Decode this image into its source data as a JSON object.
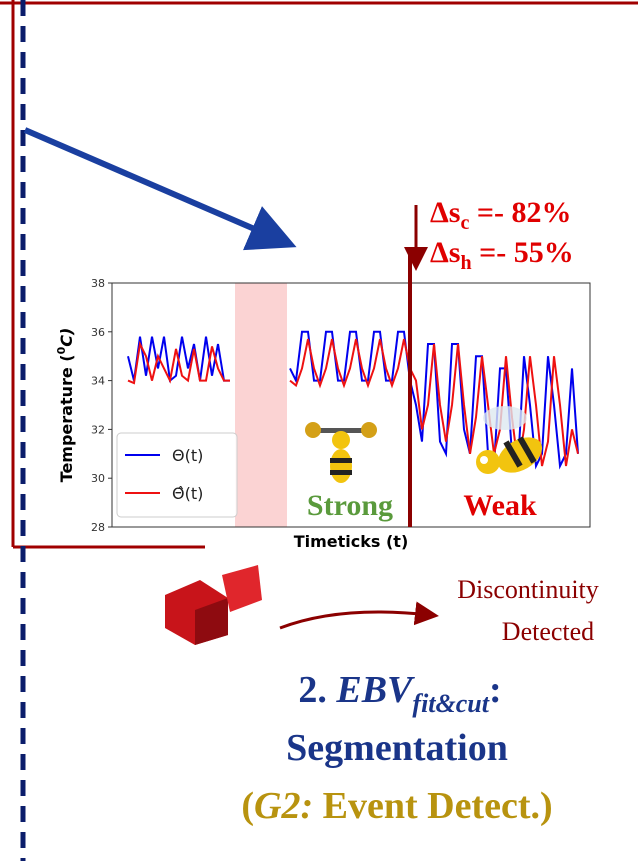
{
  "chart_data": {
    "type": "line",
    "ylabel": [
      "Temperature (",
      "0",
      "C)"
    ],
    "xlabel": "Timeticks (t)",
    "ylim": [
      28,
      38
    ],
    "yticks": [
      28,
      30,
      32,
      34,
      36,
      38
    ],
    "legend": "lower left",
    "series": [
      {
        "name": "Θ(t)",
        "color": "#0000ee",
        "values": [
          35,
          34,
          35.8,
          34.2,
          35.8,
          34.5,
          35.8,
          34,
          34.2,
          35.8,
          34.5,
          35.5,
          34,
          35.8,
          34.2,
          35.5,
          34,
          34,
          null,
          null,
          null,
          null,
          null,
          null,
          null,
          null,
          null,
          34.5,
          34,
          36,
          36,
          34,
          34,
          36,
          36,
          34,
          34,
          36,
          36,
          34,
          34,
          36,
          36,
          34,
          34,
          36,
          36,
          34,
          33,
          31.5,
          35.5,
          35.5,
          31.5,
          31,
          35.5,
          35.5,
          32,
          31,
          35,
          35,
          31,
          30.5,
          34.5,
          34.5,
          31,
          30.5,
          35,
          33,
          30.5,
          31,
          35,
          33,
          30.5,
          31,
          34.5,
          31
        ]
      },
      {
        "name": "Θ̂(t)",
        "color": "#ee1111",
        "values": [
          34,
          33.9,
          35.5,
          35,
          34,
          35,
          34.5,
          34,
          35.3,
          34.2,
          34,
          35.3,
          34,
          34,
          35.4,
          34.5,
          34,
          34,
          null,
          null,
          null,
          null,
          null,
          null,
          null,
          null,
          null,
          34,
          33.8,
          34.5,
          35.7,
          34.5,
          33.8,
          34.5,
          35.7,
          34.5,
          33.8,
          34.5,
          35.7,
          34.5,
          33.8,
          34.5,
          35.7,
          34.5,
          33.8,
          34.5,
          35.7,
          34.5,
          34,
          32,
          33,
          35.5,
          33,
          31.5,
          33,
          35.5,
          33,
          31,
          32.5,
          35,
          33,
          31,
          32,
          35,
          32.5,
          30.5,
          32,
          35,
          33,
          30.5,
          31.5,
          35,
          33,
          30.5,
          32,
          31
        ]
      }
    ],
    "annotations": {
      "strong": "Strong",
      "weak": "Weak",
      "delta_c": [
        "Δs",
        "c",
        " =- 82%"
      ],
      "delta_h": [
        "Δs",
        "h",
        " =- 55%"
      ]
    }
  },
  "labels": {
    "discontinuity": [
      "Discontinuity",
      "Detected"
    ],
    "method": [
      "2. ",
      "EBV",
      "fit&cut",
      ":"
    ],
    "segmentation": "Segmentation",
    "goal": [
      "(",
      "G2:",
      " Event Detect.)"
    ]
  }
}
